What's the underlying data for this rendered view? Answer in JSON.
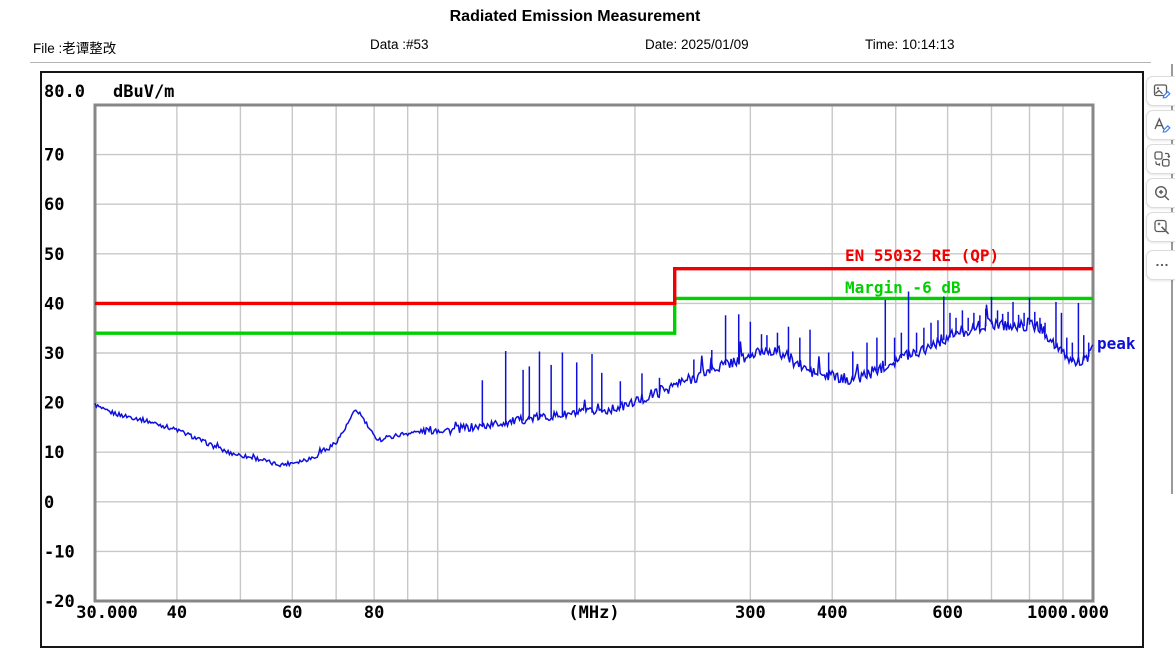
{
  "title": "Radiated Emission Measurement",
  "header": {
    "file": "File :老谭整改",
    "data": "Data :#53",
    "date": "Date: 2025/01/09",
    "time": "Time: 10:14:13"
  },
  "toolbar": {
    "icons": [
      "edit-image",
      "edit-text",
      "convert-shapes",
      "zoom-in",
      "smart-select",
      "more"
    ]
  },
  "chart_data": {
    "type": "line",
    "title": "Radiated Emission Measurement",
    "grid": true,
    "x_axis": {
      "label": "(MHz)",
      "scale": "log",
      "min": 30,
      "max": 1000,
      "ticks": [
        {
          "value": 30,
          "label": "30.000"
        },
        {
          "value": 40,
          "label": "40"
        },
        {
          "value": 60,
          "label": "60"
        },
        {
          "value": 80,
          "label": "80"
        },
        {
          "value": null,
          "label": "(MHz)"
        },
        {
          "value": 300,
          "label": "300"
        },
        {
          "value": 400,
          "label": "400"
        },
        {
          "value": 600,
          "label": "600"
        },
        {
          "value": 1000,
          "label": "1000.000"
        }
      ],
      "gridlines": [
        40,
        50,
        60,
        70,
        80,
        90,
        100,
        200,
        300,
        400,
        500,
        600,
        700,
        800,
        900
      ]
    },
    "y_axis": {
      "label": "dBuV/m",
      "min": -20,
      "max": 80,
      "ticks": [
        {
          "value": 80,
          "label": "80.0"
        },
        {
          "value": 70,
          "label": "70"
        },
        {
          "value": 60,
          "label": "60"
        },
        {
          "value": 50,
          "label": "50"
        },
        {
          "value": 40,
          "label": "40"
        },
        {
          "value": 30,
          "label": "30"
        },
        {
          "value": 20,
          "label": "20"
        },
        {
          "value": 10,
          "label": "10"
        },
        {
          "value": 0,
          "label": "0"
        },
        {
          "value": -10,
          "label": "-10"
        },
        {
          "value": -20,
          "label": "-20"
        }
      ],
      "gridlines": [
        70,
        60,
        50,
        40,
        30,
        20,
        10,
        0,
        -10
      ]
    },
    "series": [
      {
        "name": "peak",
        "type": "trace",
        "color": "#0f0fdc",
        "points": [
          [
            30,
            19.6
          ],
          [
            31,
            18.4
          ],
          [
            32,
            17.9
          ],
          [
            33,
            17.4
          ],
          [
            34,
            17.1
          ],
          [
            35,
            16.7
          ],
          [
            36,
            16.3
          ],
          [
            38,
            15.4
          ],
          [
            40,
            14.5
          ],
          [
            42,
            13.3
          ],
          [
            44,
            12.1
          ],
          [
            46,
            10.9
          ],
          [
            48,
            9.9
          ],
          [
            50,
            9.4
          ],
          [
            52,
            8.9
          ],
          [
            54,
            8.5
          ],
          [
            56,
            7.7
          ],
          [
            58,
            7.5
          ],
          [
            60,
            7.9
          ],
          [
            62,
            8.3
          ],
          [
            64,
            8.8
          ],
          [
            66,
            9.5
          ],
          [
            68,
            10.6
          ],
          [
            70,
            12.1
          ],
          [
            72,
            14.4
          ],
          [
            74,
            17.3
          ],
          [
            75,
            18.4
          ],
          [
            76,
            17.9
          ],
          [
            78,
            15.5
          ],
          [
            80,
            13.1
          ],
          [
            82,
            12.5
          ],
          [
            84,
            12.9
          ],
          [
            86,
            13.3
          ],
          [
            88,
            13.6
          ],
          [
            92,
            14.0
          ],
          [
            96,
            14.3
          ],
          [
            100,
            14.6
          ],
          [
            105,
            14.4
          ],
          [
            110,
            14.9
          ],
          [
            115,
            15.1
          ],
          [
            120,
            15.5
          ],
          [
            130,
            16.2
          ],
          [
            140,
            16.9
          ],
          [
            150,
            17.3
          ],
          [
            160,
            17.7
          ],
          [
            170,
            18.1
          ],
          [
            180,
            18.4
          ],
          [
            190,
            19.1
          ],
          [
            200,
            20.1
          ],
          [
            210,
            21.3
          ],
          [
            220,
            22.5
          ],
          [
            230,
            23.5
          ],
          [
            240,
            24.5
          ],
          [
            250,
            25.5
          ],
          [
            260,
            26.5
          ],
          [
            270,
            27.4
          ],
          [
            280,
            28.1
          ],
          [
            290,
            28.7
          ],
          [
            300,
            29.3
          ],
          [
            310,
            30.2
          ],
          [
            320,
            30.7
          ],
          [
            330,
            30.3
          ],
          [
            340,
            29.4
          ],
          [
            350,
            28.3
          ],
          [
            360,
            27.2
          ],
          [
            370,
            26.3
          ],
          [
            380,
            25.7
          ],
          [
            400,
            25.0
          ],
          [
            420,
            24.7
          ],
          [
            440,
            25.2
          ],
          [
            460,
            26.1
          ],
          [
            480,
            27.5
          ],
          [
            500,
            28.6
          ],
          [
            520,
            29.7
          ],
          [
            540,
            30.3
          ],
          [
            560,
            31.3
          ],
          [
            580,
            32.3
          ],
          [
            600,
            33.1
          ],
          [
            620,
            34.0
          ],
          [
            640,
            34.5
          ],
          [
            660,
            35.1
          ],
          [
            680,
            35.5
          ],
          [
            700,
            36.0
          ],
          [
            720,
            36.0
          ],
          [
            740,
            35.6
          ],
          [
            760,
            35.2
          ],
          [
            780,
            35.5
          ],
          [
            800,
            35.9
          ],
          [
            820,
            35.4
          ],
          [
            840,
            34.5
          ],
          [
            860,
            33.0
          ],
          [
            880,
            31.1
          ],
          [
            900,
            29.7
          ],
          [
            920,
            28.7
          ],
          [
            940,
            28.2
          ],
          [
            960,
            28.5
          ],
          [
            980,
            29.0
          ],
          [
            1000,
            30.6
          ]
        ],
        "spikes": [
          [
            117,
            24.5
          ],
          [
            127,
            30.4
          ],
          [
            135,
            26.6
          ],
          [
            138,
            27.3
          ],
          [
            143,
            30.3
          ],
          [
            149,
            27.6
          ],
          [
            155,
            30.1
          ],
          [
            163,
            28.1
          ],
          [
            172,
            29.8
          ],
          [
            178,
            26.0
          ],
          [
            190,
            24.3
          ],
          [
            205,
            25.9
          ],
          [
            218,
            25.0
          ],
          [
            246,
            28.7
          ],
          [
            262,
            30.6
          ],
          [
            275,
            37.6
          ],
          [
            288,
            37.8
          ],
          [
            300,
            36.3
          ],
          [
            312,
            33.8
          ],
          [
            318,
            33.6
          ],
          [
            330,
            34.1
          ],
          [
            343,
            35.3
          ],
          [
            357,
            33.1
          ],
          [
            370,
            34.7
          ],
          [
            395,
            30.1
          ],
          [
            430,
            30.3
          ],
          [
            452,
            32.1
          ],
          [
            468,
            33.1
          ],
          [
            482,
            40.7
          ],
          [
            498,
            33.1
          ],
          [
            510,
            34.1
          ],
          [
            523,
            42.4
          ],
          [
            538,
            34.1
          ],
          [
            552,
            35.1
          ],
          [
            566,
            36.1
          ],
          [
            580,
            36.6
          ],
          [
            592,
            41.4
          ],
          [
            605,
            38.1
          ],
          [
            618,
            37.1
          ],
          [
            632,
            38.6
          ],
          [
            645,
            37.1
          ],
          [
            658,
            38.1
          ],
          [
            672,
            37.6
          ],
          [
            686,
            38.9
          ],
          [
            700,
            41.3
          ],
          [
            715,
            38.6
          ],
          [
            728,
            37.9
          ],
          [
            742,
            38.3
          ],
          [
            755,
            40.3
          ],
          [
            770,
            37.7
          ],
          [
            785,
            38.1
          ],
          [
            800,
            41.1
          ],
          [
            815,
            38.3
          ],
          [
            830,
            37.1
          ],
          [
            845,
            36.1
          ],
          [
            878,
            40.3
          ],
          [
            895,
            38.1
          ],
          [
            912,
            33.1
          ],
          [
            930,
            32.1
          ],
          [
            950,
            40.1
          ],
          [
            968,
            33.6
          ],
          [
            985,
            32.1
          ]
        ]
      },
      {
        "name": "EN 55032 RE (QP)",
        "type": "limit",
        "color": "#f00000",
        "points": [
          [
            30,
            40
          ],
          [
            230,
            40
          ],
          [
            230,
            47
          ],
          [
            1000,
            47
          ]
        ]
      },
      {
        "name": "Margin -6 dB",
        "type": "limit",
        "color": "#00d000",
        "points": [
          [
            30,
            34
          ],
          [
            230,
            34
          ],
          [
            230,
            41
          ],
          [
            1000,
            41
          ]
        ]
      }
    ],
    "annotations": [
      {
        "text": "EN 55032 RE (QP)",
        "color": "#f00000"
      },
      {
        "text": "Margin -6 dB",
        "color": "#00d000"
      },
      {
        "text": "peak",
        "color": "#0f0fdc"
      }
    ]
  }
}
